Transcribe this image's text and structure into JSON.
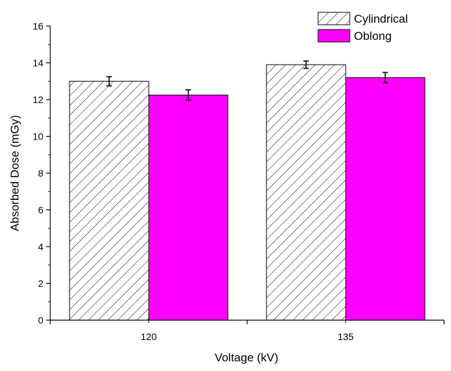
{
  "chart_data": {
    "type": "bar",
    "xlabel": "Voltage (kV)",
    "ylabel": "Absorbed Dose (mGy)",
    "categories": [
      "120",
      "135"
    ],
    "ylim": [
      0,
      16
    ],
    "yticks": [
      0,
      2,
      4,
      6,
      8,
      10,
      12,
      14,
      16
    ],
    "grid": false,
    "legend": "top-right",
    "series": [
      {
        "name": "Cylindrical",
        "values": [
          13.0,
          13.9
        ],
        "errors": [
          0.25,
          0.2
        ],
        "fill": "hatched",
        "color": "#ffffff"
      },
      {
        "name": "Oblong",
        "values": [
          12.25,
          13.2
        ],
        "errors": [
          0.28,
          0.28
        ],
        "fill": "solid",
        "color": "#ff00ff"
      }
    ]
  }
}
